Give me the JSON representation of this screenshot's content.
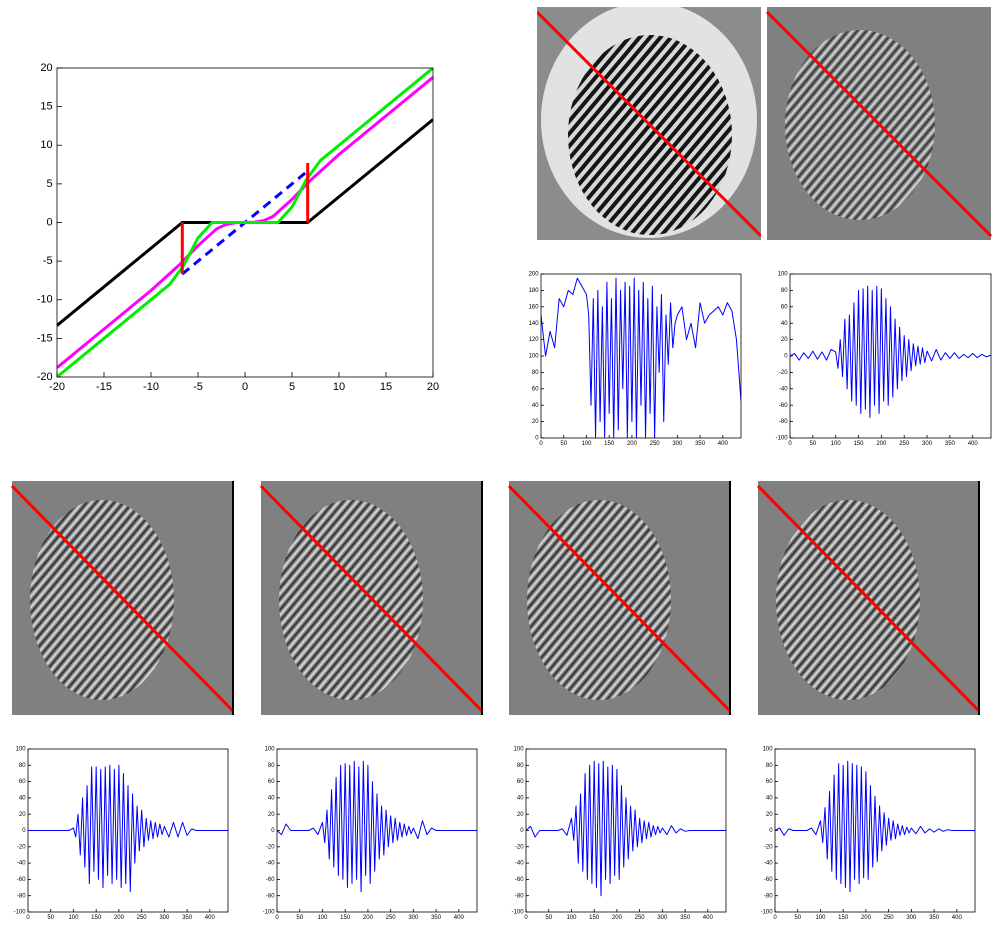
{
  "chart_data": [
    {
      "type": "line",
      "xlim": [
        -20,
        20
      ],
      "ylim": [
        -20,
        20
      ],
      "xticks": [
        -20,
        -15,
        -10,
        -5,
        0,
        5,
        10,
        15,
        20
      ],
      "yticks": [
        -20,
        -15,
        -10,
        -5,
        0,
        5,
        10,
        15,
        20
      ],
      "series": [
        {
          "color": "#000000",
          "x": [
            -20,
            -6.67,
            6.67,
            20
          ],
          "values": [
            -13.33,
            0,
            0,
            13.33
          ]
        },
        {
          "color": "#0000ff",
          "linestyle": "dashed",
          "x": [
            -6.67,
            6.67
          ],
          "values": [
            -6.67,
            6.67
          ]
        },
        {
          "color": "#ff00ff",
          "x": [
            -20,
            -15,
            -10,
            -7,
            -5,
            -3,
            -2,
            -1,
            0,
            1,
            2,
            3,
            5,
            7,
            10,
            15,
            20
          ],
          "values": [
            -18.8,
            -13.8,
            -8.8,
            -5.5,
            -3,
            -0.8,
            -0.25,
            -0.03,
            0,
            0.03,
            0.25,
            0.8,
            3,
            5.5,
            8.8,
            13.8,
            18.8
          ]
        },
        {
          "color": "#00ee00",
          "x": [
            -20,
            -8,
            -6.5,
            -5,
            -3.5,
            -2,
            0,
            2,
            3.5,
            5,
            6.5,
            8,
            20
          ],
          "values": [
            -20,
            -8,
            -5.5,
            -2,
            0,
            0,
            0,
            0,
            0,
            2,
            5.5,
            8,
            20
          ]
        },
        {
          "color": "#ff0000",
          "x": [
            -6.67,
            -6.67,
            0,
            6.67,
            6.67
          ],
          "values": [
            -6.67,
            0,
            null,
            0,
            7.7
          ]
        }
      ]
    },
    {
      "type": "line",
      "xlim": [
        0,
        440
      ],
      "ylim": [
        0,
        200
      ],
      "xticks": [
        0,
        50,
        100,
        150,
        200,
        250,
        300,
        350,
        400
      ],
      "yticks": [
        0,
        20,
        40,
        60,
        80,
        100,
        120,
        140,
        160,
        180,
        200
      ],
      "x": [
        0,
        10,
        20,
        30,
        40,
        50,
        60,
        70,
        80,
        90,
        100,
        105,
        110,
        115,
        120,
        125,
        130,
        135,
        140,
        145,
        150,
        155,
        160,
        165,
        170,
        175,
        180,
        185,
        190,
        195,
        200,
        205,
        210,
        215,
        220,
        225,
        230,
        235,
        240,
        245,
        250,
        255,
        260,
        265,
        270,
        275,
        280,
        285,
        290,
        295,
        300,
        310,
        320,
        330,
        340,
        350,
        360,
        370,
        380,
        390,
        400,
        410,
        420,
        430,
        440
      ],
      "series": [
        {
          "color": "#0000ff",
          "values": [
            150,
            100,
            130,
            110,
            170,
            160,
            180,
            175,
            195,
            185,
            175,
            150,
            40,
            170,
            0,
            180,
            20,
            160,
            0,
            190,
            30,
            170,
            0,
            195,
            10,
            180,
            60,
            190,
            0,
            185,
            20,
            195,
            0,
            180,
            40,
            190,
            0,
            170,
            30,
            185,
            0,
            160,
            80,
            175,
            20,
            150,
            90,
            165,
            110,
            140,
            150,
            160,
            120,
            140,
            110,
            165,
            140,
            150,
            155,
            160,
            150,
            165,
            155,
            120,
            45
          ]
        }
      ]
    },
    {
      "type": "line",
      "xlim": [
        0,
        440
      ],
      "ylim": [
        -100,
        100
      ],
      "xticks": [
        0,
        50,
        100,
        150,
        200,
        250,
        300,
        350,
        400
      ],
      "yticks": [
        -100,
        -80,
        -60,
        -40,
        -20,
        0,
        20,
        40,
        60,
        80,
        100
      ],
      "x": [
        0,
        10,
        20,
        30,
        40,
        50,
        60,
        70,
        80,
        90,
        100,
        105,
        110,
        115,
        120,
        125,
        130,
        135,
        140,
        145,
        150,
        155,
        160,
        165,
        170,
        175,
        180,
        185,
        190,
        195,
        200,
        205,
        210,
        215,
        220,
        225,
        230,
        235,
        240,
        245,
        250,
        255,
        260,
        265,
        270,
        275,
        280,
        285,
        290,
        295,
        300,
        310,
        320,
        330,
        340,
        350,
        360,
        370,
        380,
        390,
        400,
        410,
        420,
        430,
        440
      ],
      "series": [
        {
          "color": "#0000ff",
          "values": [
            0,
            3,
            -5,
            4,
            -3,
            6,
            -4,
            5,
            -5,
            8,
            5,
            -15,
            20,
            -25,
            45,
            -40,
            50,
            -55,
            65,
            -60,
            80,
            -70,
            82,
            -65,
            85,
            -75,
            80,
            -60,
            85,
            -70,
            82,
            -55,
            70,
            -60,
            60,
            -50,
            45,
            -40,
            35,
            -30,
            25,
            -25,
            20,
            -18,
            15,
            -12,
            12,
            -10,
            10,
            -8,
            6,
            -6,
            8,
            -5,
            4,
            -3,
            4,
            -3,
            2,
            -2,
            3,
            -2,
            2,
            -1,
            1
          ]
        }
      ]
    },
    {
      "type": "line",
      "xlim": [
        0,
        440
      ],
      "ylim": [
        -100,
        100
      ],
      "xticks": [
        0,
        50,
        100,
        150,
        200,
        250,
        300,
        350,
        400
      ],
      "yticks": [
        -100,
        -80,
        -60,
        -40,
        -20,
        0,
        20,
        40,
        60,
        80,
        100
      ],
      "x": [
        0,
        10,
        20,
        30,
        40,
        50,
        60,
        70,
        80,
        90,
        100,
        105,
        110,
        115,
        120,
        125,
        130,
        135,
        140,
        145,
        150,
        155,
        160,
        165,
        170,
        175,
        180,
        185,
        190,
        195,
        200,
        205,
        210,
        215,
        220,
        225,
        230,
        235,
        240,
        245,
        250,
        255,
        260,
        265,
        270,
        275,
        280,
        285,
        290,
        295,
        300,
        310,
        320,
        330,
        340,
        350,
        360,
        370,
        380,
        390,
        400,
        410,
        420,
        430,
        440
      ],
      "series": [
        {
          "color": "#0000ff",
          "values": [
            0,
            0,
            0,
            0,
            0,
            0,
            0,
            0,
            0,
            0,
            3,
            -8,
            20,
            -30,
            40,
            -45,
            55,
            -65,
            78,
            -50,
            78,
            -60,
            75,
            -70,
            78,
            -55,
            80,
            -65,
            75,
            -60,
            80,
            -70,
            70,
            -65,
            55,
            -75,
            45,
            -40,
            30,
            -25,
            25,
            -20,
            15,
            -12,
            12,
            -10,
            10,
            -8,
            8,
            -5,
            5,
            -8,
            10,
            -8,
            10,
            -6,
            2,
            0,
            0,
            0,
            0,
            0,
            0,
            0,
            0
          ]
        }
      ]
    },
    {
      "type": "line",
      "xlim": [
        0,
        440
      ],
      "ylim": [
        -100,
        100
      ],
      "xticks": [
        0,
        50,
        100,
        150,
        200,
        250,
        300,
        350,
        400
      ],
      "yticks": [
        -100,
        -80,
        -60,
        -40,
        -20,
        0,
        20,
        40,
        60,
        80,
        100
      ],
      "x": [
        0,
        10,
        20,
        30,
        40,
        50,
        60,
        70,
        80,
        90,
        100,
        105,
        110,
        115,
        120,
        125,
        130,
        135,
        140,
        145,
        150,
        155,
        160,
        165,
        170,
        175,
        180,
        185,
        190,
        195,
        200,
        205,
        210,
        215,
        220,
        225,
        230,
        235,
        240,
        245,
        250,
        255,
        260,
        265,
        270,
        275,
        280,
        285,
        290,
        295,
        300,
        310,
        320,
        330,
        340,
        350,
        360,
        370,
        380,
        390,
        400,
        410,
        420,
        430,
        440
      ],
      "series": [
        {
          "color": "#0000ff",
          "values": [
            0,
            -5,
            8,
            0,
            0,
            0,
            0,
            0,
            3,
            -5,
            10,
            -15,
            25,
            -35,
            50,
            -45,
            65,
            -55,
            80,
            -60,
            82,
            -70,
            80,
            -65,
            85,
            -60,
            78,
            -75,
            85,
            -55,
            80,
            -65,
            60,
            -50,
            45,
            -35,
            30,
            -30,
            25,
            -20,
            18,
            -15,
            15,
            -12,
            10,
            -8,
            8,
            -6,
            5,
            -4,
            3,
            -10,
            12,
            -5,
            3,
            0,
            0,
            0,
            0,
            0,
            0,
            0,
            0,
            0,
            0
          ]
        }
      ]
    },
    {
      "type": "line",
      "xlim": [
        0,
        440
      ],
      "ylim": [
        -100,
        100
      ],
      "xticks": [
        0,
        50,
        100,
        150,
        200,
        250,
        300,
        350,
        400
      ],
      "yticks": [
        -100,
        -80,
        -60,
        -40,
        -20,
        0,
        20,
        40,
        60,
        80,
        100
      ],
      "x": [
        0,
        10,
        20,
        30,
        40,
        50,
        60,
        70,
        80,
        90,
        100,
        105,
        110,
        115,
        120,
        125,
        130,
        135,
        140,
        145,
        150,
        155,
        160,
        165,
        170,
        175,
        180,
        185,
        190,
        195,
        200,
        205,
        210,
        215,
        220,
        225,
        230,
        235,
        240,
        245,
        250,
        255,
        260,
        265,
        270,
        275,
        280,
        285,
        290,
        295,
        300,
        310,
        320,
        330,
        340,
        350,
        360,
        370,
        380,
        390,
        400,
        410,
        420,
        430,
        440
      ],
      "series": [
        {
          "color": "#0000ff",
          "values": [
            0,
            5,
            -8,
            0,
            0,
            0,
            0,
            0,
            2,
            -6,
            15,
            -12,
            30,
            -40,
            45,
            -50,
            70,
            -60,
            80,
            -65,
            85,
            -70,
            82,
            -80,
            85,
            -60,
            78,
            -65,
            80,
            -55,
            75,
            -60,
            55,
            -45,
            40,
            -35,
            30,
            -25,
            25,
            -20,
            15,
            -15,
            12,
            -10,
            10,
            -8,
            6,
            -5,
            5,
            -3,
            3,
            -5,
            6,
            -3,
            2,
            -1,
            0,
            0,
            0,
            0,
            0,
            0,
            0,
            0,
            0
          ]
        }
      ]
    },
    {
      "type": "line",
      "xlim": [
        0,
        440
      ],
      "ylim": [
        -100,
        100
      ],
      "xticks": [
        0,
        50,
        100,
        150,
        200,
        250,
        300,
        350,
        400
      ],
      "yticks": [
        -100,
        -80,
        -60,
        -40,
        -20,
        0,
        20,
        40,
        60,
        80,
        100
      ],
      "x": [
        0,
        10,
        20,
        30,
        40,
        50,
        60,
        70,
        80,
        90,
        100,
        105,
        110,
        115,
        120,
        125,
        130,
        135,
        140,
        145,
        150,
        155,
        160,
        165,
        170,
        175,
        180,
        185,
        190,
        195,
        200,
        205,
        210,
        215,
        220,
        225,
        230,
        235,
        240,
        245,
        250,
        255,
        260,
        265,
        270,
        275,
        280,
        285,
        290,
        295,
        300,
        310,
        320,
        330,
        340,
        350,
        360,
        370,
        380,
        390,
        400,
        410,
        420,
        430,
        440
      ],
      "series": [
        {
          "color": "#0000ff",
          "values": [
            0,
            3,
            -6,
            2,
            0,
            0,
            0,
            0,
            3,
            -5,
            12,
            -15,
            28,
            -35,
            48,
            -50,
            68,
            -60,
            82,
            -65,
            80,
            -70,
            85,
            -75,
            82,
            -60,
            80,
            -65,
            78,
            -58,
            72,
            -60,
            55,
            -45,
            42,
            -38,
            30,
            -25,
            22,
            -18,
            15,
            -12,
            12,
            -10,
            8,
            -6,
            6,
            -5,
            4,
            -3,
            3,
            -4,
            5,
            -3,
            2,
            -2,
            2,
            -1,
            1,
            0,
            0,
            0,
            0,
            0,
            0
          ]
        }
      ]
    }
  ]
}
